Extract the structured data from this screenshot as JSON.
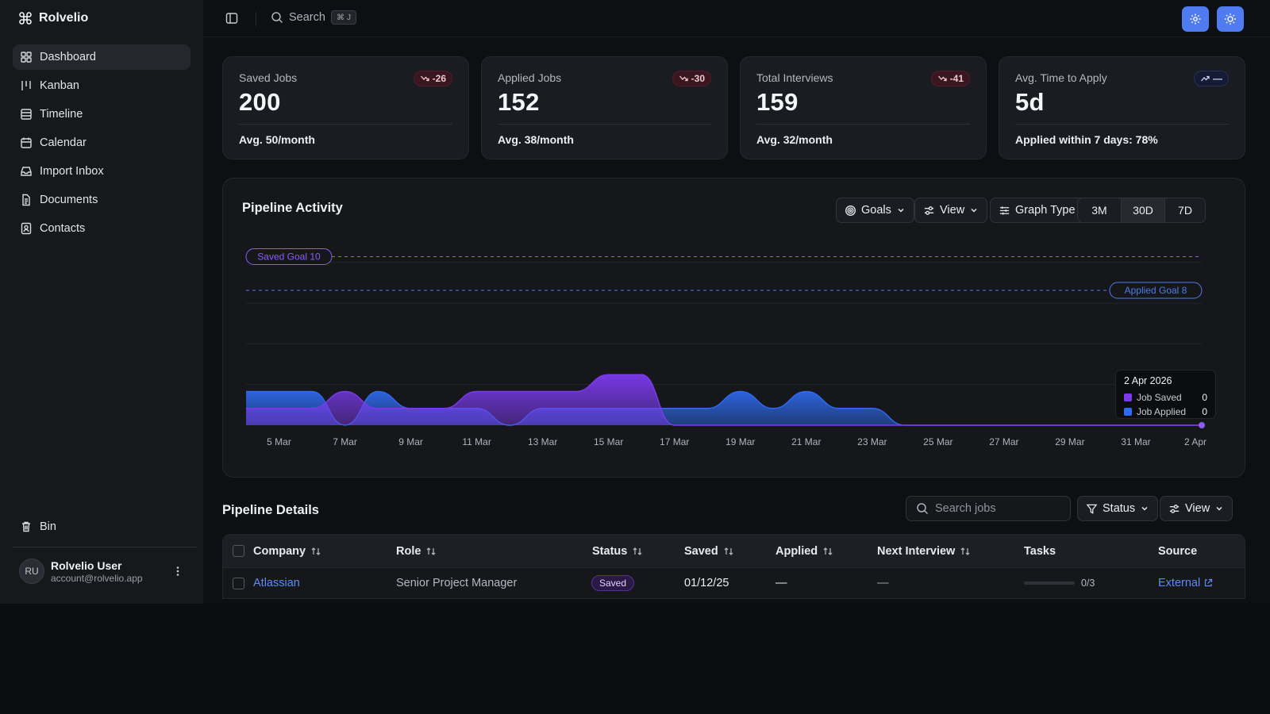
{
  "app": {
    "name": "Rolvelio"
  },
  "sidebar": {
    "items": [
      {
        "label": "Dashboard",
        "icon": "dashboard-icon",
        "active": true
      },
      {
        "label": "Kanban",
        "icon": "kanban-icon"
      },
      {
        "label": "Timeline",
        "icon": "timeline-icon"
      },
      {
        "label": "Calendar",
        "icon": "calendar-icon"
      },
      {
        "label": "Import Inbox",
        "icon": "inbox-icon"
      },
      {
        "label": "Documents",
        "icon": "document-icon"
      },
      {
        "label": "Contacts",
        "icon": "contacts-icon"
      }
    ],
    "bin_label": "Bin",
    "user": {
      "initials": "RU",
      "name": "Rolvelio User",
      "email": "account@rolvelio.app"
    }
  },
  "topbar": {
    "search_label": "Search",
    "shortcut_key": "J"
  },
  "stats": [
    {
      "label": "Saved Jobs",
      "value": "200",
      "footer": "Avg. 50/month",
      "delta": "-26",
      "trend": "down"
    },
    {
      "label": "Applied Jobs",
      "value": "152",
      "footer": "Avg. 38/month",
      "delta": "-30",
      "trend": "down"
    },
    {
      "label": "Total Interviews",
      "value": "159",
      "footer": "Avg. 32/month",
      "delta": "-41",
      "trend": "down"
    },
    {
      "label": "Avg. Time to Apply",
      "value": "5d",
      "footer": "Applied within 7 days: 78%",
      "delta": "—",
      "trend": "up"
    }
  ],
  "pipeline": {
    "title": "Pipeline Activity",
    "controls": {
      "goals": "Goals",
      "view": "View",
      "graph_type": "Graph Type"
    },
    "ranges": [
      {
        "label": "3M"
      },
      {
        "label": "30D",
        "active": true
      },
      {
        "label": "7D"
      }
    ],
    "tooltip": {
      "date": "2 Apr 2026",
      "rows": [
        {
          "label": "Job Saved",
          "value": "0"
        },
        {
          "label": "Job Applied",
          "value": "0"
        }
      ]
    }
  },
  "chart_data": {
    "type": "area",
    "x": [
      "4 Mar",
      "5 Mar",
      "6 Mar",
      "7 Mar",
      "8 Mar",
      "9 Mar",
      "10 Mar",
      "11 Mar",
      "12 Mar",
      "13 Mar",
      "14 Mar",
      "15 Mar",
      "16 Mar",
      "17 Mar",
      "18 Mar",
      "19 Mar",
      "20 Mar",
      "21 Mar",
      "22 Mar",
      "23 Mar",
      "24 Mar",
      "25 Mar",
      "26 Mar",
      "27 Mar",
      "28 Mar",
      "29 Mar",
      "30 Mar",
      "31 Mar",
      "1 Apr",
      "2 Apr"
    ],
    "x_tick_labels": [
      "5 Mar",
      "7 Mar",
      "9 Mar",
      "11 Mar",
      "13 Mar",
      "15 Mar",
      "17 Mar",
      "19 Mar",
      "21 Mar",
      "23 Mar",
      "25 Mar",
      "27 Mar",
      "29 Mar",
      "31 Mar",
      "2 Apr"
    ],
    "series": [
      {
        "name": "Job Saved",
        "color": "#7c3aed",
        "values": [
          1,
          1,
          1,
          2,
          1,
          1,
          1,
          2,
          2,
          2,
          2,
          3,
          3,
          0,
          0,
          0,
          0,
          0,
          0,
          0,
          0,
          0,
          0,
          0,
          0,
          0,
          0,
          0,
          0,
          0
        ]
      },
      {
        "name": "Job Applied",
        "color": "#2f6bf0",
        "values": [
          2,
          2,
          2,
          0,
          2,
          1,
          1,
          1,
          0,
          1,
          1,
          1,
          1,
          1,
          1,
          2,
          1,
          2,
          1,
          1,
          0,
          0,
          0,
          0,
          0,
          0,
          0,
          0,
          0,
          0
        ]
      }
    ],
    "goals": [
      {
        "label": "Saved Goal 10",
        "value": 10,
        "color": "#8b5cf6"
      },
      {
        "label": "Applied Goal 8",
        "value": 8,
        "color": "#4f7bf0"
      }
    ],
    "ylim": [
      0,
      12
    ],
    "grid": true
  },
  "details": {
    "title": "Pipeline Details",
    "search_placeholder": "Search jobs",
    "status_filter": "Status",
    "view_label": "View",
    "columns": [
      "Company",
      "Role",
      "Status",
      "Saved",
      "Applied",
      "Next Interview",
      "Tasks",
      "Source"
    ],
    "rows": [
      {
        "company": "Atlassian",
        "role": "Senior Project Manager",
        "status": "Saved",
        "saved": "01/12/25",
        "applied": "—",
        "next_interview": "—",
        "tasks": "0/3",
        "tasks_progress": 0,
        "source": "External"
      }
    ]
  }
}
